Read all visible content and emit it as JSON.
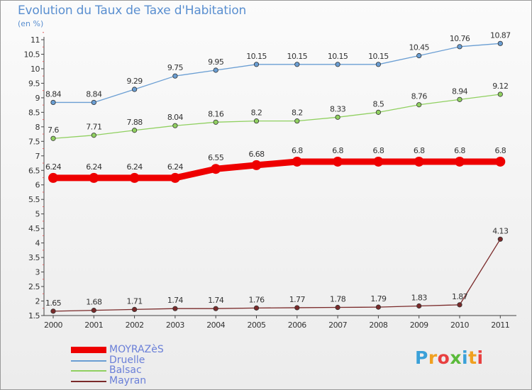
{
  "chart_data": {
    "type": "line",
    "title": "Evolution du Taux de Taxe d'Habitation",
    "subtitle": "(en %)",
    "xlabel": "",
    "ylabel": "",
    "categories": [
      "2000",
      "2001",
      "2002",
      "2003",
      "2004",
      "2005",
      "2006",
      "2007",
      "2008",
      "2009",
      "2010",
      "2011"
    ],
    "ylim": [
      1.5,
      11
    ],
    "ytick_step": 0.5,
    "yticks": [
      "1.5",
      "2",
      "2.5",
      "3",
      "3.5",
      "4",
      "4.5",
      "5",
      "5.5",
      "6",
      "6.5",
      "7",
      "7.5",
      "8",
      "8.5",
      "9",
      "9.5",
      "10",
      "10.5",
      "11"
    ],
    "grid": false,
    "legend_position": "bottom-left",
    "series": [
      {
        "name": "MOYRAZèS",
        "color": "#ee0000",
        "values": [
          6.24,
          6.24,
          6.24,
          6.24,
          6.55,
          6.68,
          6.8,
          6.8,
          6.8,
          6.8,
          6.8,
          6.8
        ],
        "labels": [
          "6.24",
          "6.24",
          "6.24",
          "6.24",
          "6.55",
          "6.68",
          "6.8",
          "6.8",
          "6.8",
          "6.8",
          "6.8",
          "6.8"
        ]
      },
      {
        "name": "Druelle",
        "color": "#6a9ed3",
        "values": [
          8.84,
          8.84,
          9.29,
          9.75,
          9.95,
          10.15,
          10.15,
          10.15,
          10.15,
          10.45,
          10.76,
          10.87
        ],
        "labels": [
          "8.84",
          "8.84",
          "9.29",
          "9.75",
          "9.95",
          "10.15",
          "10.15",
          "10.15",
          "10.15",
          "10.45",
          "10.76",
          "10.87"
        ]
      },
      {
        "name": "Balsac",
        "color": "#90d060",
        "values": [
          7.6,
          7.71,
          7.88,
          8.04,
          8.16,
          8.2,
          8.2,
          8.33,
          8.5,
          8.76,
          8.94,
          9.12
        ],
        "labels": [
          "7.6",
          "7.71",
          "7.88",
          "8.04",
          "8.16",
          "8.2",
          "8.2",
          "8.33",
          "8.5",
          "8.76",
          "8.94",
          "9.12"
        ]
      },
      {
        "name": "Mayran",
        "color": "#7a2a2a",
        "values": [
          1.65,
          1.68,
          1.71,
          1.74,
          1.74,
          1.76,
          1.77,
          1.78,
          1.79,
          1.83,
          1.87,
          4.13
        ],
        "labels": [
          "1.65",
          "1.68",
          "1.71",
          "1.74",
          "1.74",
          "1.76",
          "1.77",
          "1.78",
          "1.79",
          "1.83",
          "1.87",
          "4.13"
        ]
      }
    ]
  },
  "logo": {
    "letters": [
      "P",
      "r",
      "o",
      "x",
      "i",
      "t",
      "i"
    ],
    "colors": [
      "#3aa0d8",
      "#f0a020",
      "#e84040",
      "#5aba3a",
      "#3aa0d8",
      "#f0a020",
      "#e84040"
    ]
  }
}
